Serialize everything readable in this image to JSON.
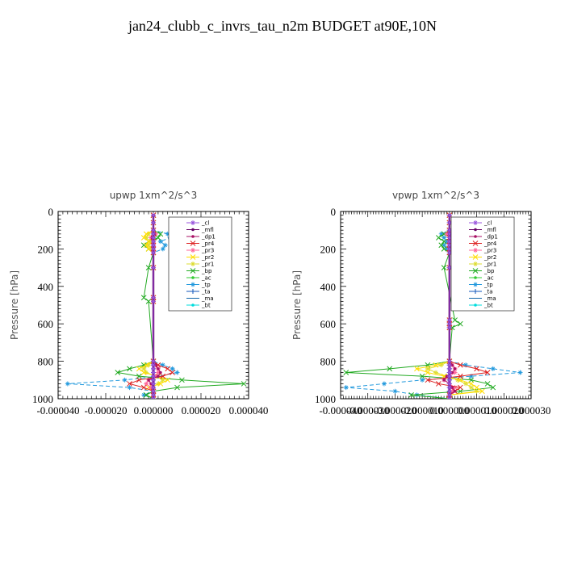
{
  "title": "jan24_clubb_c_invrs_tau_n2m  BUDGET at90E,10N",
  "legend_entries": [
    {
      "name": "_cl",
      "color": "#9955dd",
      "marker": "*"
    },
    {
      "name": "_mfl",
      "color": "#660066",
      "marker": "o"
    },
    {
      "name": "_dp1",
      "color": "#aa1166",
      "marker": "o"
    },
    {
      "name": "_pr4",
      "color": "#dd2222",
      "marker": "x"
    },
    {
      "name": "_pr3",
      "color": "#ff6699",
      "marker": "*"
    },
    {
      "name": "_pr2",
      "color": "#ffdd00",
      "marker": "x"
    },
    {
      "name": "_pr1",
      "color": "#dddd33",
      "marker": "*"
    },
    {
      "name": "_bp",
      "color": "#22aa22",
      "marker": "x"
    },
    {
      "name": "_ac",
      "color": "#33cc33",
      "marker": "o"
    },
    {
      "name": "_tp",
      "color": "#2299dd",
      "marker": "*"
    },
    {
      "name": "_ta",
      "color": "#1155bb",
      "marker": "+"
    },
    {
      "name": "_ma",
      "color": "#1166aa",
      "marker": "-"
    },
    {
      "name": "_bt",
      "color": "#00dddd",
      "marker": "o"
    }
  ],
  "chart_data": [
    {
      "type": "line",
      "title": "upwp   1xm^2/s^3",
      "ylabel": "Pressure [hPa]",
      "xlabel": "",
      "xlim": [
        -4e-05,
        4e-05
      ],
      "ylim": [
        1000,
        0
      ],
      "x_tick_labels": [
        "-0.000040",
        "-0.000020",
        "0.000000",
        "0.000020",
        "0.000040"
      ],
      "x_ticks": [
        -4e-05,
        -2e-05,
        0,
        2e-05,
        4e-05
      ],
      "y_ticks": [
        0,
        200,
        400,
        600,
        800,
        1000
      ],
      "y": [
        20,
        60,
        100,
        120,
        140,
        160,
        180,
        200,
        220,
        300,
        460,
        480,
        800,
        820,
        840,
        860,
        880,
        900,
        920,
        940,
        960,
        980,
        1000
      ],
      "series": [
        {
          "name": "_cl",
          "values": [
            0,
            0,
            0,
            0,
            0,
            0,
            0,
            0,
            0,
            0,
            0,
            0,
            0,
            0,
            0,
            0,
            0,
            0,
            0,
            0,
            0,
            0,
            0
          ]
        },
        {
          "name": "_mfl",
          "values": [
            0,
            0,
            0,
            0,
            0,
            0,
            0,
            0,
            0,
            0,
            0,
            0,
            0,
            0,
            0,
            0,
            0,
            0,
            0,
            0,
            0,
            0,
            0
          ]
        },
        {
          "name": "_dp1",
          "values": [
            0,
            0,
            0,
            5e-07,
            -5e-07,
            0,
            0,
            0,
            0,
            0,
            0,
            0,
            0,
            1e-06,
            2e-06,
            3e-06,
            2e-06,
            -2e-06,
            -1e-06,
            0,
            0,
            0,
            0
          ]
        },
        {
          "name": "_pr4",
          "values": [
            0,
            0,
            0,
            0,
            0,
            0,
            0,
            0,
            0,
            0,
            0,
            0,
            0,
            2e-06,
            6e-06,
            8e-06,
            4e-06,
            -6e-06,
            -1e-05,
            -4e-06,
            0,
            0,
            0
          ]
        },
        {
          "name": "_pr3",
          "values": [
            0,
            0,
            0,
            1e-06,
            -1e-06,
            0,
            0,
            0,
            0,
            0,
            0,
            0,
            0,
            1e-06,
            2e-06,
            2e-06,
            1e-06,
            -2e-06,
            -3e-06,
            -1e-06,
            0,
            0,
            0
          ]
        },
        {
          "name": "_pr2",
          "values": [
            0,
            0,
            0,
            -3e-06,
            -4e-06,
            -2e-06,
            -3e-06,
            -2e-06,
            0,
            0,
            0,
            0,
            0,
            -3e-06,
            -6e-06,
            -4e-06,
            2e-06,
            6e-06,
            3e-06,
            -2e-06,
            0,
            0,
            0
          ]
        },
        {
          "name": "_pr1",
          "values": [
            0,
            0,
            0,
            -2e-06,
            -3e-06,
            -1e-06,
            -2e-06,
            -1e-06,
            0,
            0,
            0,
            0,
            0,
            -2e-06,
            -4e-06,
            -3e-06,
            1e-06,
            4e-06,
            2e-06,
            -1e-06,
            0,
            0,
            0
          ]
        },
        {
          "name": "_bp",
          "values": [
            0,
            0,
            0,
            3e-06,
            2e-06,
            -2e-06,
            -4e-06,
            -2e-06,
            0,
            -2e-06,
            -4e-06,
            -2e-06,
            0,
            -4e-06,
            -1e-05,
            -1.5e-05,
            -6e-06,
            1.2e-05,
            3.8e-05,
            1e-05,
            0,
            -3e-06,
            0
          ]
        },
        {
          "name": "_ac",
          "values": [
            0,
            0,
            0,
            0,
            0,
            0,
            0,
            0,
            0,
            0,
            0,
            0,
            0,
            0,
            0,
            0,
            0,
            0,
            0,
            0,
            0,
            0,
            0
          ]
        },
        {
          "name": "_tp",
          "values": [
            0,
            0,
            0,
            6e-06,
            7e-06,
            3e-06,
            5e-06,
            4e-06,
            0,
            0,
            0,
            0,
            0,
            4e-06,
            8e-06,
            1e-05,
            2e-06,
            -1.2e-05,
            -3.6e-05,
            -1e-05,
            0,
            -4e-06,
            0
          ]
        },
        {
          "name": "_ta",
          "values": [
            0,
            0,
            0,
            0,
            0,
            0,
            0,
            0,
            0,
            0,
            0,
            0,
            0,
            0,
            0,
            0,
            0,
            0,
            0,
            0,
            0,
            0,
            0
          ]
        },
        {
          "name": "_ma",
          "values": [
            0,
            0,
            0,
            0,
            0,
            0,
            0,
            0,
            0,
            0,
            0,
            0,
            0,
            0,
            0,
            0,
            0,
            0,
            0,
            0,
            0,
            0,
            0
          ]
        },
        {
          "name": "_bt",
          "values": [
            0,
            0,
            0,
            0,
            0,
            0,
            0,
            0,
            0,
            0,
            0,
            0,
            0,
            0,
            0,
            0,
            0,
            0,
            0,
            0,
            0,
            0,
            0
          ]
        }
      ]
    },
    {
      "type": "line",
      "title": "vpwp   1xm^2/s^3",
      "ylabel": "Pressure [hPa]",
      "xlabel": "",
      "xlim": [
        -4e-05,
        3e-05
      ],
      "ylim": [
        1000,
        0
      ],
      "x_tick_labels": [
        "-0.000040",
        "-0.000030",
        "-0.000020",
        "-0.000010",
        "0.000000",
        "0.000010",
        "0.000020",
        "0.000030"
      ],
      "x_ticks": [
        -4e-05,
        -3e-05,
        -2e-05,
        -1e-05,
        0,
        1e-05,
        2e-05,
        3e-05
      ],
      "y_ticks": [
        0,
        200,
        400,
        600,
        800,
        1000
      ],
      "y": [
        20,
        60,
        100,
        120,
        140,
        160,
        180,
        200,
        220,
        300,
        580,
        600,
        620,
        800,
        820,
        840,
        860,
        880,
        900,
        920,
        940,
        960,
        980,
        1000
      ],
      "series": [
        {
          "name": "_cl",
          "values": [
            0,
            0,
            0,
            0,
            0,
            0,
            0,
            0,
            0,
            0,
            0,
            0,
            0,
            0,
            0,
            0,
            0,
            0,
            0,
            0,
            0,
            0,
            0,
            0
          ]
        },
        {
          "name": "_mfl",
          "values": [
            0,
            0,
            0,
            0,
            0,
            0,
            0,
            0,
            0,
            0,
            0,
            0,
            0,
            0,
            0,
            0,
            0,
            0,
            0,
            0,
            0,
            0,
            0,
            0
          ]
        },
        {
          "name": "_dp1",
          "values": [
            0,
            0,
            0,
            5e-07,
            0,
            0,
            0,
            0,
            0,
            0,
            0,
            0,
            0,
            0,
            1e-06,
            2e-06,
            1e-06,
            -1e-06,
            -2e-06,
            0,
            1e-06,
            2e-06,
            0,
            0
          ]
        },
        {
          "name": "_pr4",
          "values": [
            0,
            0,
            0,
            0,
            0,
            0,
            0,
            0,
            0,
            0,
            0,
            0,
            0,
            0,
            4e-06,
            1e-05,
            1.4e-05,
            4e-06,
            -8e-06,
            -4e-06,
            4e-06,
            2e-06,
            0,
            0
          ]
        },
        {
          "name": "_pr3",
          "values": [
            0,
            0,
            0,
            -1e-06,
            1e-06,
            0,
            0,
            0,
            0,
            0,
            0,
            0,
            0,
            0,
            1e-06,
            2e-06,
            2e-06,
            0,
            -2e-06,
            0,
            2e-06,
            1e-06,
            0,
            0
          ]
        },
        {
          "name": "_pr2",
          "values": [
            0,
            0,
            0,
            2e-06,
            3e-06,
            2e-06,
            0,
            0,
            0,
            0,
            0,
            0,
            0,
            0,
            -5e-06,
            -1.2e-05,
            -8e-06,
            -2e-06,
            4e-06,
            8e-06,
            1e-05,
            1.2e-05,
            0,
            0
          ]
        },
        {
          "name": "_pr1",
          "values": [
            0,
            0,
            0,
            1e-06,
            2e-06,
            1e-06,
            0,
            0,
            0,
            0,
            0,
            0,
            0,
            0,
            -3e-06,
            -8e-06,
            -5e-06,
            -1e-06,
            3e-06,
            6e-06,
            8e-06,
            1e-05,
            0,
            0
          ]
        },
        {
          "name": "_bp",
          "values": [
            0,
            0,
            0,
            -2e-06,
            -4e-06,
            -2e-06,
            -3e-06,
            -2e-06,
            0,
            -2e-06,
            2e-06,
            4e-06,
            1e-06,
            0,
            -8e-06,
            -2.2e-05,
            -3.8e-05,
            -1e-05,
            8e-06,
            1.4e-05,
            1.6e-05,
            4e-06,
            -1.4e-05,
            0
          ]
        },
        {
          "name": "_ac",
          "values": [
            0,
            0,
            0,
            0,
            0,
            0,
            0,
            0,
            0,
            0,
            0,
            0,
            0,
            0,
            0,
            0,
            0,
            0,
            0,
            0,
            0,
            0,
            0,
            0
          ]
        },
        {
          "name": "_tp",
          "values": [
            0,
            0,
            0,
            -3e-06,
            -2e-06,
            -1e-06,
            -2e-06,
            -1e-06,
            0,
            0,
            0,
            0,
            0,
            0,
            6e-06,
            1.6e-05,
            2.6e-05,
            8e-06,
            -1e-05,
            -2.4e-05,
            -3.8e-05,
            -2e-05,
            -1.2e-05,
            0
          ]
        },
        {
          "name": "_ta",
          "values": [
            0,
            0,
            0,
            0,
            0,
            0,
            0,
            0,
            0,
            0,
            0,
            0,
            0,
            0,
            0,
            0,
            0,
            0,
            0,
            0,
            0,
            0,
            0,
            0
          ]
        },
        {
          "name": "_ma",
          "values": [
            0,
            0,
            0,
            0,
            0,
            0,
            0,
            0,
            0,
            0,
            0,
            0,
            0,
            0,
            0,
            0,
            0,
            0,
            0,
            0,
            0,
            0,
            0,
            0
          ]
        },
        {
          "name": "_bt",
          "values": [
            0,
            0,
            0,
            0,
            0,
            0,
            0,
            0,
            0,
            0,
            0,
            0,
            0,
            0,
            0,
            0,
            0,
            0,
            0,
            0,
            0,
            0,
            0,
            0
          ]
        }
      ]
    }
  ]
}
